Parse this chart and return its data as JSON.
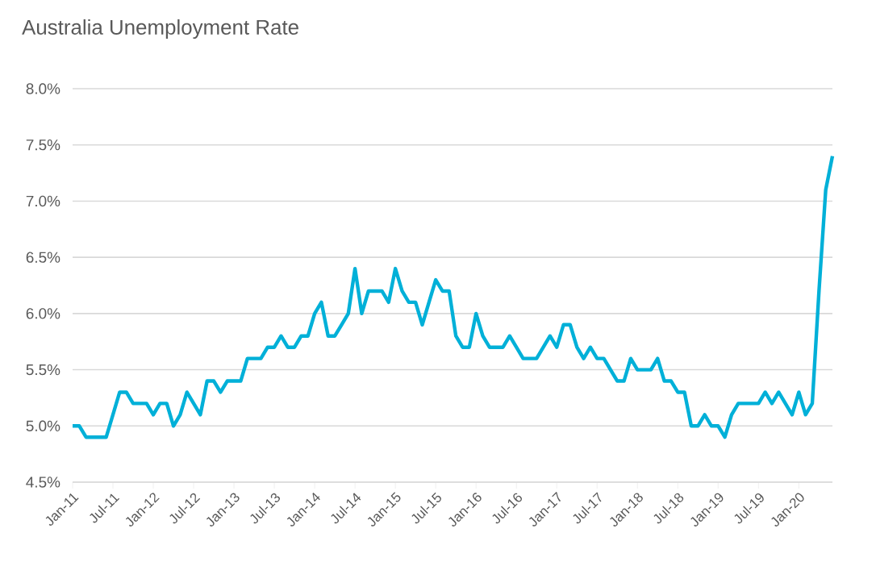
{
  "chart_data": {
    "type": "line",
    "title": "Australia Unemployment Rate",
    "categories": [
      "Jan-11",
      null,
      null,
      null,
      null,
      null,
      "Jul-11",
      null,
      null,
      null,
      null,
      null,
      "Jan-12",
      null,
      null,
      null,
      null,
      null,
      "Jul-12",
      null,
      null,
      null,
      null,
      null,
      "Jan-13",
      null,
      null,
      null,
      null,
      null,
      "Jul-13",
      null,
      null,
      null,
      null,
      null,
      "Jan-14",
      null,
      null,
      null,
      null,
      null,
      "Jul-14",
      null,
      null,
      null,
      null,
      null,
      "Jan-15",
      null,
      null,
      null,
      null,
      null,
      "Jul-15",
      null,
      null,
      null,
      null,
      null,
      "Jan-16",
      null,
      null,
      null,
      null,
      null,
      "Jul-16",
      null,
      null,
      null,
      null,
      null,
      "Jan-17",
      null,
      null,
      null,
      null,
      null,
      "Jul-17",
      null,
      null,
      null,
      null,
      null,
      "Jan-18",
      null,
      null,
      null,
      null,
      null,
      "Jul-18",
      null,
      null,
      null,
      null,
      null,
      "Jan-19",
      null,
      null,
      null,
      null,
      null,
      "Jul-19",
      null,
      null,
      null,
      null,
      null,
      "Jan-20",
      null,
      null,
      null,
      null,
      null
    ],
    "values": [
      5.0,
      5.0,
      4.9,
      4.9,
      4.9,
      4.9,
      5.1,
      5.3,
      5.3,
      5.2,
      5.2,
      5.2,
      5.1,
      5.2,
      5.2,
      5.0,
      5.1,
      5.3,
      5.2,
      5.1,
      5.4,
      5.4,
      5.3,
      5.4,
      5.4,
      5.4,
      5.6,
      5.6,
      5.6,
      5.7,
      5.7,
      5.8,
      5.7,
      5.7,
      5.8,
      5.8,
      6.0,
      6.1,
      5.8,
      5.8,
      5.9,
      6.0,
      6.4,
      6.0,
      6.2,
      6.2,
      6.2,
      6.1,
      6.4,
      6.2,
      6.1,
      6.1,
      5.9,
      6.1,
      6.3,
      6.2,
      6.2,
      5.8,
      5.7,
      5.7,
      6.0,
      5.8,
      5.7,
      5.7,
      5.7,
      5.8,
      5.7,
      5.6,
      5.6,
      5.6,
      5.7,
      5.8,
      5.7,
      5.9,
      5.9,
      5.7,
      5.6,
      5.7,
      5.6,
      5.6,
      5.5,
      5.4,
      5.4,
      5.6,
      5.5,
      5.5,
      5.5,
      5.6,
      5.4,
      5.4,
      5.3,
      5.3,
      5.0,
      5.0,
      5.1,
      5.0,
      5.0,
      4.9,
      5.1,
      5.2,
      5.2,
      5.2,
      5.2,
      5.3,
      5.2,
      5.3,
      5.2,
      5.1,
      5.3,
      5.1,
      5.2,
      6.2,
      7.1,
      7.4
    ],
    "color": "#00b0d8",
    "ylim": [
      4.5,
      8.0
    ],
    "yticks": [
      {
        "value": 4.5,
        "label": "4.5%"
      },
      {
        "value": 5.0,
        "label": "5.0%"
      },
      {
        "value": 5.5,
        "label": "5.5%"
      },
      {
        "value": 6.0,
        "label": "6.0%"
      },
      {
        "value": 6.5,
        "label": "6.5%"
      },
      {
        "value": 7.0,
        "label": "7.0%"
      },
      {
        "value": 7.5,
        "label": "7.5%"
      },
      {
        "value": 8.0,
        "label": "8.0%"
      }
    ],
    "grid": "y"
  }
}
